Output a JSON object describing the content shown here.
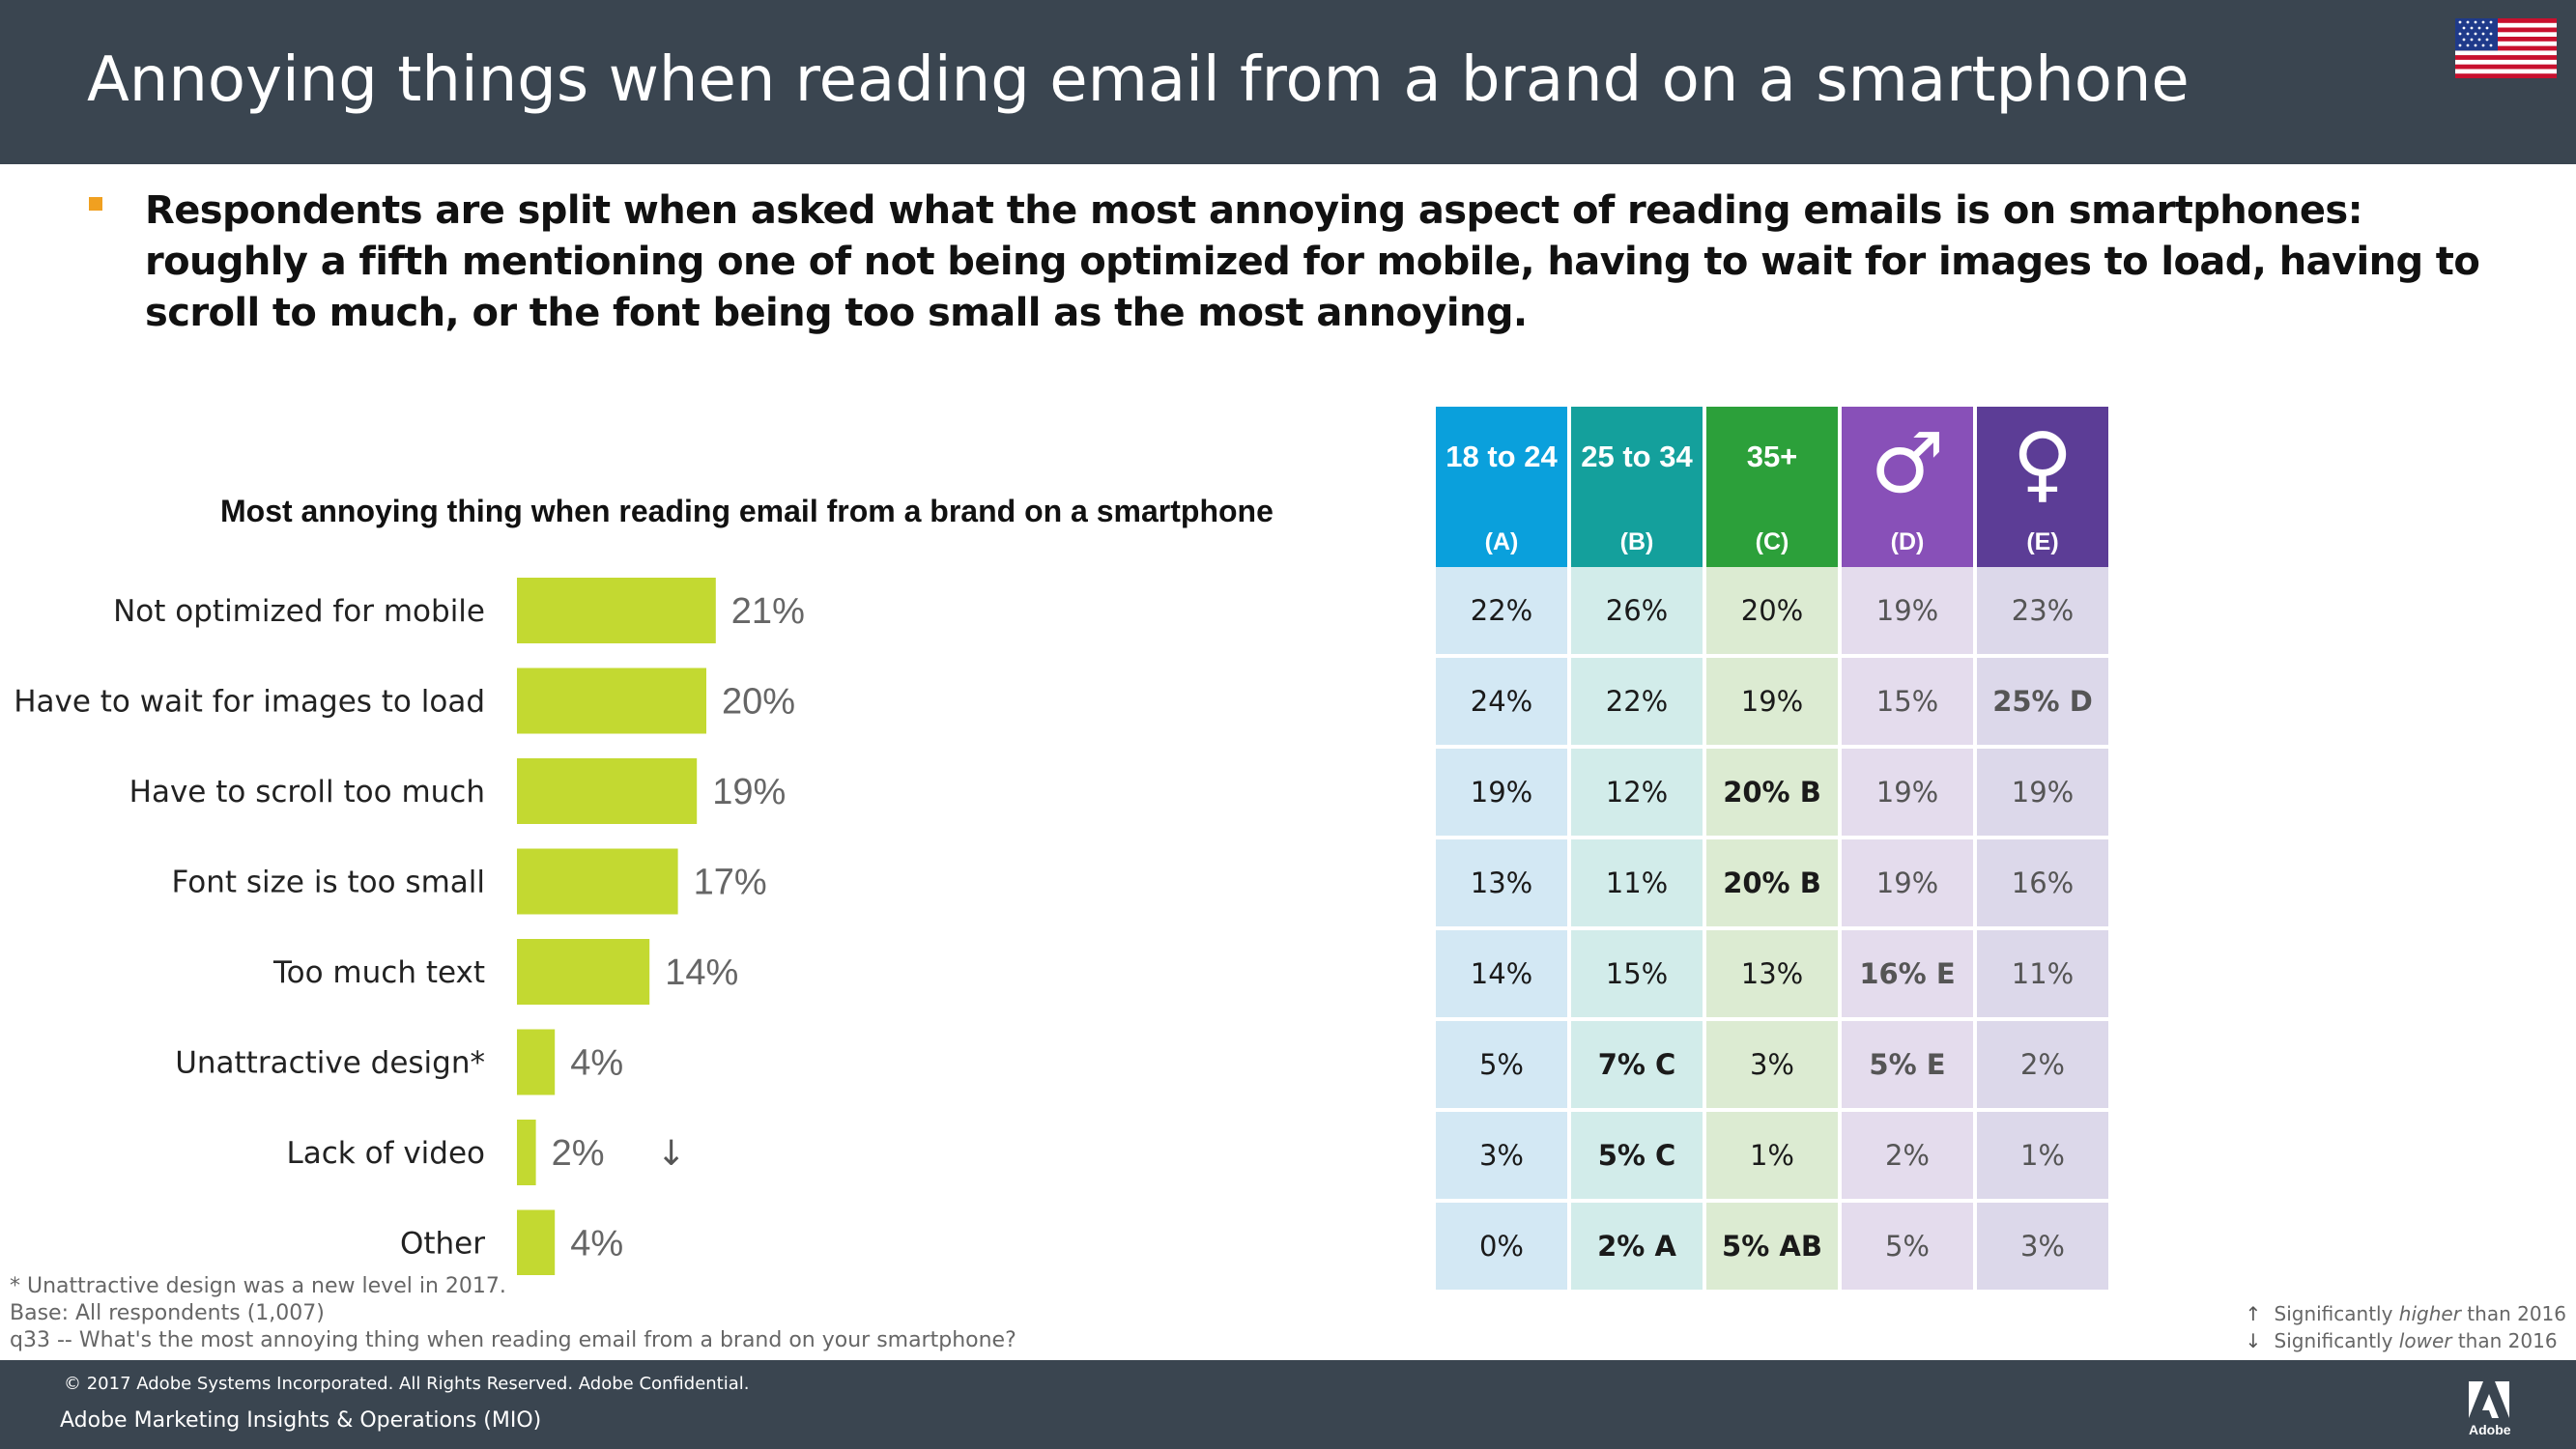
{
  "page": {
    "title": "Annoying things when reading email from a brand on a smartphone",
    "bullet": "Respondents are split when asked what the most annoying aspect of reading emails is on smartphones: roughly a fifth mentioning one of not being optimized for mobile, having to wait for images to load, having to scroll to much, or the font being too small as the most annoying."
  },
  "colors": {
    "header_bg": "#3a4550",
    "bar": "#c3d931",
    "bullet": "#f0a020"
  },
  "chart_data": {
    "type": "bar",
    "orientation": "horizontal",
    "title": "Most annoying thing when reading email from a brand on a smartphone",
    "categories": [
      "Not optimized for mobile",
      "Have to wait for images to load",
      "Have to scroll too much",
      "Font size is too small",
      "Too much text",
      "Unattractive design*",
      "Lack of video",
      "Other"
    ],
    "values": [
      21,
      20,
      19,
      17,
      14,
      4,
      2,
      4
    ],
    "value_labels": [
      "21%",
      "20%",
      "19%",
      "17%",
      "14%",
      "4%",
      "2%",
      "4%"
    ],
    "markers": [
      "",
      "",
      "",
      "",
      "",
      "",
      "↓",
      ""
    ],
    "unit": "%",
    "xlim": [
      0,
      100
    ],
    "grid": false
  },
  "table": {
    "headers": [
      {
        "label": "18 to 24",
        "symbol": "",
        "code": "(A)",
        "color": "#0aa0dc"
      },
      {
        "label": "25 to 34",
        "symbol": "",
        "code": "(B)",
        "color": "#14a09c"
      },
      {
        "label": "35+",
        "symbol": "",
        "code": "(C)",
        "color": "#2ca03a"
      },
      {
        "label": "",
        "symbol": "♂",
        "code": "(D)",
        "color": "#8850b8"
      },
      {
        "label": "",
        "symbol": "♀",
        "code": "(E)",
        "color": "#5c3d96"
      }
    ],
    "rows": [
      [
        "22%",
        "26%",
        "20%",
        "19%",
        "23%"
      ],
      [
        "24%",
        "22%",
        "19%",
        "15%",
        "25% D"
      ],
      [
        "19%",
        "12%",
        "20% B",
        "19%",
        "19%"
      ],
      [
        "13%",
        "11%",
        "20% B",
        "19%",
        "16%"
      ],
      [
        "14%",
        "15%",
        "13%",
        "16% E",
        "11%"
      ],
      [
        "5%",
        "7% C",
        "3%",
        "5% E",
        "2%"
      ],
      [
        "3%",
        "5% C",
        "1%",
        "2%",
        "1%"
      ],
      [
        "0%",
        "2% A",
        "5% AB",
        "5%",
        "3%"
      ]
    ]
  },
  "notes": [
    "* Unattractive design was a new level in 2017.",
    "Base: All respondents (1,007)",
    "q33 -- What's the most annoying thing when reading email from a brand on your smartphone?"
  ],
  "legend": {
    "up_arrow": "↑",
    "up_text_pre": "Significantly ",
    "up_text_em": "higher",
    "up_text_post": " than 2016",
    "down_arrow": "↓",
    "down_text_pre": "Significantly ",
    "down_text_em": "lower",
    "down_text_post": " than 2016"
  },
  "footer": {
    "copyright": "© 2017 Adobe Systems Incorporated.  All Rights Reserved.  Adobe Confidential.",
    "mio": "Adobe Marketing Insights & Operations (MIO)",
    "logo_text": "Adobe"
  }
}
